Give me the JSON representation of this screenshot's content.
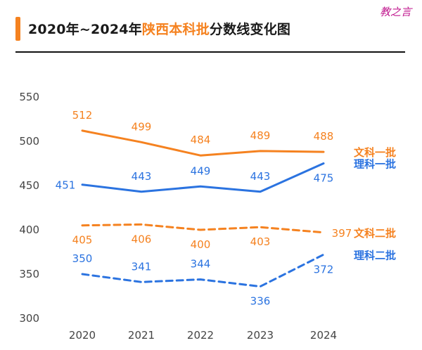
{
  "watermark": "教之言",
  "title": {
    "prefix": "2020年~2024年",
    "highlight": "陕西本科批",
    "suffix": "分数线变化图"
  },
  "colors": {
    "orange": "#F58220",
    "blue": "#2B73E0"
  },
  "chart_data": {
    "type": "line",
    "title": "2020年~2024年陕西本科批分数线变化图",
    "categories": [
      "2020",
      "2021",
      "2022",
      "2023",
      "2024"
    ],
    "ylim": [
      300,
      550
    ],
    "yticks": [
      300,
      350,
      400,
      450,
      500,
      550
    ],
    "grid": false,
    "series": [
      {
        "name": "文科一批",
        "color": "#F58220",
        "style": "solid",
        "values": [
          512,
          499,
          484,
          489,
          488
        ],
        "label_pos": [
          "above",
          "above",
          "above",
          "above",
          "above"
        ]
      },
      {
        "name": "理科一批",
        "color": "#2B73E0",
        "style": "solid",
        "values": [
          451,
          443,
          449,
          443,
          475
        ],
        "label_pos": [
          "left",
          "above",
          "above",
          "above",
          "below"
        ]
      },
      {
        "name": "文科二批",
        "color": "#F58220",
        "style": "dashed",
        "values": [
          405,
          406,
          400,
          403,
          397
        ],
        "label_pos": [
          "below",
          "below",
          "below",
          "below",
          "right"
        ]
      },
      {
        "name": "理科二批",
        "color": "#2B73E0",
        "style": "dashed",
        "values": [
          350,
          341,
          344,
          336,
          372
        ],
        "label_pos": [
          "above",
          "above",
          "above",
          "below",
          "below"
        ]
      }
    ]
  }
}
